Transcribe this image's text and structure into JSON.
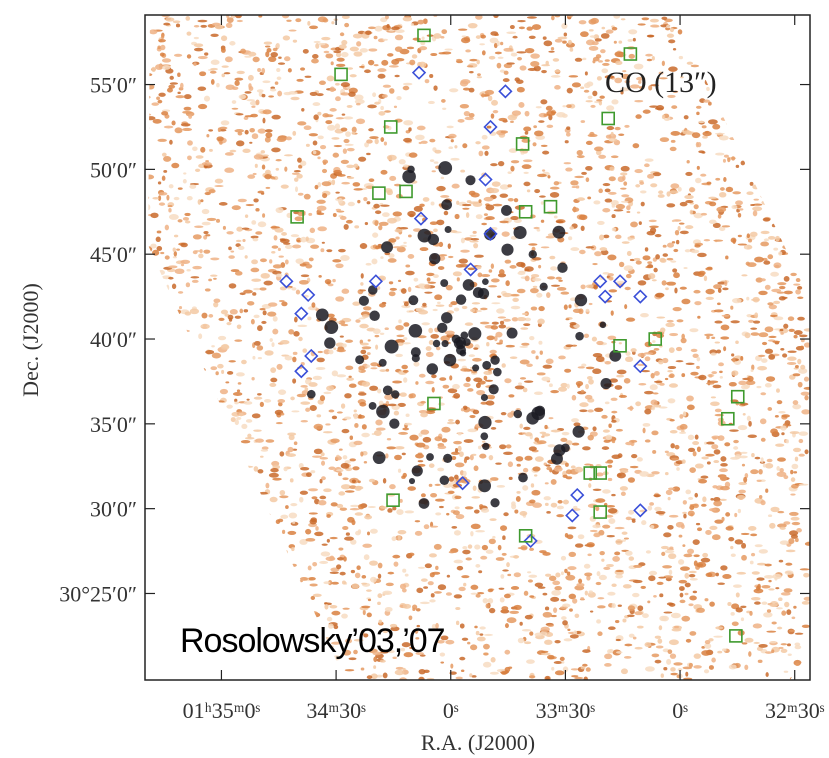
{
  "chart_data": {
    "type": "scatter",
    "title": "CO (13″)",
    "annotation": "Rosolowsky’03,’07",
    "x_label": "R.A. (J2000)",
    "y_label": "Dec. (J2000)",
    "xlim": [
      2120,
      1946
    ],
    "ylim": [
      19.9,
      59.1
    ],
    "xticks": [
      {
        "value": 2100,
        "label": "01ʰ35ᵐ0ˢ"
      },
      {
        "value": 2070,
        "label": "34ᵐ30ˢ"
      },
      {
        "value": 2040,
        "label": "0ˢ"
      },
      {
        "value": 2010,
        "label": "33ᵐ30ˢ"
      },
      {
        "value": 1980,
        "label": "0ˢ"
      },
      {
        "value": 1950,
        "label": "32ᵐ30ˢ"
      }
    ],
    "yticks": [
      {
        "value": 55,
        "label": "55′0″"
      },
      {
        "value": 50,
        "label": "50′0″"
      },
      {
        "value": 45,
        "label": "45′0″"
      },
      {
        "value": 40,
        "label": "40′0″"
      },
      {
        "value": 35,
        "label": "35′0″"
      },
      {
        "value": 30,
        "label": "30′0″"
      },
      {
        "value": 25,
        "label": "30°25′0″"
      }
    ],
    "series": [
      {
        "marker": "diamond",
        "color": "#3a4fd8",
        "x": [
          2048.3,
          2025.7,
          2029.6,
          2059.6,
          2083.0,
          2077.3,
          2079.1,
          2000.9,
          1995.7,
          1990.4,
          1999.6,
          1990.4,
          2006.9,
          1990.4,
          2036.9,
          2019.1,
          2029.6,
          2034.8,
          2030.9,
          2047.8,
          2079.1,
          2076.5,
          2008.2
        ],
        "values": [
          55.7,
          54.6,
          52.5,
          43.4,
          43.4,
          42.6,
          41.5,
          43.4,
          43.4,
          42.5,
          42.5,
          38.4,
          30.8,
          29.9,
          31.5,
          28.1,
          46.2,
          44.1,
          49.4,
          47.1,
          38.1,
          39.0,
          29.6
        ]
      },
      {
        "marker": "square",
        "color": "#3f9a2e",
        "x": [
          2047.0,
          2068.7,
          1993.0,
          1998.8,
          2021.2,
          2055.7,
          2051.7,
          2020.4,
          2013.9,
          1964.9,
          1967.5,
          2000.9,
          2003.5,
          1965.4,
          2020.4,
          2000.9,
          2044.4,
          1986.5,
          1995.7,
          2055.1,
          2080.2,
          2058.8
        ],
        "values": [
          57.9,
          55.6,
          56.8,
          53.0,
          51.5,
          52.5,
          48.7,
          47.5,
          47.8,
          36.6,
          35.3,
          32.1,
          32.1,
          22.5,
          28.4,
          29.8,
          36.2,
          40.0,
          39.6,
          30.5,
          47.2,
          48.6
        ]
      }
    ]
  }
}
